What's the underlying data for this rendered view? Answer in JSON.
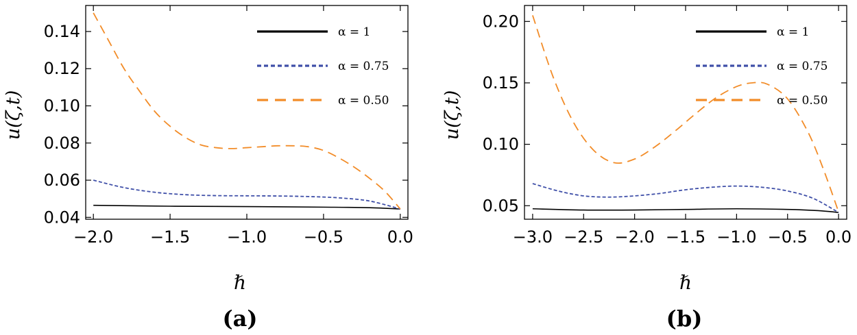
{
  "chart_data": [
    {
      "type": "line",
      "panel": "(a)",
      "xlabel": "ℏ",
      "ylabel": "u(ζ,t)",
      "xlim": [
        -2.05,
        0.05
      ],
      "ylim": [
        0.039,
        0.154
      ],
      "xticks": [
        -2.0,
        -1.5,
        -1.0,
        -0.5,
        0.0
      ],
      "xtick_labels": [
        "−2.0",
        "−1.5",
        "−1.0",
        "−0.5",
        "0.0"
      ],
      "yticks": [
        0.04,
        0.06,
        0.08,
        0.1,
        0.12,
        0.14
      ],
      "ytick_labels": [
        "0.04",
        "0.06",
        "0.08",
        "0.10",
        "0.12",
        "0.14"
      ],
      "legend_position": "top-right",
      "series": [
        {
          "name": "α = 1",
          "color": "#000000",
          "style": "solid",
          "x": [
            -2.0,
            -1.5,
            -1.0,
            -0.5,
            -0.2,
            0.0
          ],
          "y": [
            0.0465,
            0.046,
            0.0458,
            0.0455,
            0.0452,
            0.0445
          ]
        },
        {
          "name": "α = 0.75",
          "color": "#3f4fa8",
          "style": "dotted",
          "x": [
            -2.0,
            -1.8,
            -1.6,
            -1.4,
            -1.2,
            -1.0,
            -0.8,
            -0.6,
            -0.4,
            -0.2,
            0.0
          ],
          "y": [
            0.06,
            0.056,
            0.0535,
            0.0522,
            0.0517,
            0.0516,
            0.0515,
            0.0512,
            0.0505,
            0.0488,
            0.0445
          ]
        },
        {
          "name": "α = 0.50",
          "color": "#f28c28",
          "style": "dashed",
          "x": [
            -2.0,
            -1.9,
            -1.8,
            -1.7,
            -1.6,
            -1.5,
            -1.4,
            -1.3,
            -1.2,
            -1.1,
            -1.0,
            -0.9,
            -0.8,
            -0.7,
            -0.6,
            -0.5,
            -0.4,
            -0.3,
            -0.2,
            -0.1,
            0.0
          ],
          "y": [
            0.15,
            0.135,
            0.12,
            0.108,
            0.097,
            0.089,
            0.083,
            0.079,
            0.0775,
            0.077,
            0.0775,
            0.078,
            0.0785,
            0.0785,
            0.078,
            0.076,
            0.072,
            0.067,
            0.061,
            0.054,
            0.0445
          ]
        }
      ]
    },
    {
      "type": "line",
      "panel": "(b)",
      "xlabel": "ℏ",
      "ylabel": "u(ζ,t)",
      "xlim": [
        -3.08,
        0.08
      ],
      "ylim": [
        0.039,
        0.213
      ],
      "xticks": [
        -3.0,
        -2.5,
        -2.0,
        -1.5,
        -1.0,
        -0.5,
        0.0
      ],
      "xtick_labels": [
        "−3.0",
        "−2.5",
        "−2.0",
        "−1.5",
        "−1.0",
        "−0.5",
        "0.0"
      ],
      "yticks": [
        0.05,
        0.1,
        0.15,
        0.2
      ],
      "ytick_labels": [
        "0.05",
        "0.10",
        "0.15",
        "0.20"
      ],
      "legend_position": "top-right",
      "series": [
        {
          "name": "α = 1",
          "color": "#000000",
          "style": "solid",
          "x": [
            -3.0,
            -2.5,
            -2.0,
            -1.5,
            -1.0,
            -0.5,
            -0.2,
            0.0
          ],
          "y": [
            0.0475,
            0.0465,
            0.0465,
            0.047,
            0.0475,
            0.047,
            0.046,
            0.0445
          ]
        },
        {
          "name": "α = 0.75",
          "color": "#3f4fa8",
          "style": "dotted",
          "x": [
            -3.0,
            -2.75,
            -2.5,
            -2.25,
            -2.0,
            -1.75,
            -1.5,
            -1.25,
            -1.0,
            -0.75,
            -0.5,
            -0.25,
            0.0
          ],
          "y": [
            0.068,
            0.062,
            0.058,
            0.057,
            0.058,
            0.06,
            0.063,
            0.065,
            0.066,
            0.065,
            0.062,
            0.056,
            0.0445
          ]
        },
        {
          "name": "α = 0.50",
          "color": "#f28c28",
          "style": "dashed",
          "x": [
            -3.0,
            -2.8,
            -2.6,
            -2.4,
            -2.2,
            -2.0,
            -1.8,
            -1.6,
            -1.4,
            -1.2,
            -1.0,
            -0.85,
            -0.7,
            -0.5,
            -0.3,
            -0.15,
            0.0
          ],
          "y": [
            0.205,
            0.155,
            0.118,
            0.095,
            0.085,
            0.088,
            0.098,
            0.111,
            0.125,
            0.138,
            0.147,
            0.15,
            0.149,
            0.137,
            0.11,
            0.08,
            0.045
          ]
        }
      ]
    }
  ],
  "captions": {
    "a": "(a)",
    "b": "(b)"
  }
}
